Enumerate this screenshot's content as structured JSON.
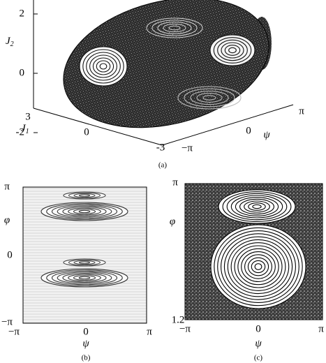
{
  "panel_a": {
    "caption": "(a)",
    "vertical_axis": {
      "symbol": "J",
      "subscript": "2",
      "ticks": [
        "2",
        "0",
        "-2"
      ]
    },
    "depth_axis": {
      "symbol": "J",
      "subscript": "1",
      "ticks": [
        "3",
        "0",
        "-3"
      ]
    },
    "horizontal_axis": {
      "symbol": "ψ",
      "ticks": [
        "π",
        "0",
        "−π"
      ]
    }
  },
  "panel_b": {
    "caption": "(b)",
    "y_label": "φ",
    "y_ticks": [
      "π",
      "0",
      "−π"
    ],
    "x_label": "ψ",
    "x_ticks": [
      "−π",
      "0",
      "π"
    ]
  },
  "panel_c": {
    "caption": "(c)",
    "y_label": "φ",
    "y_ticks": [
      "π",
      "1.2"
    ],
    "x_label": "ψ",
    "x_ticks": [
      "−π",
      "0",
      "π"
    ]
  }
}
